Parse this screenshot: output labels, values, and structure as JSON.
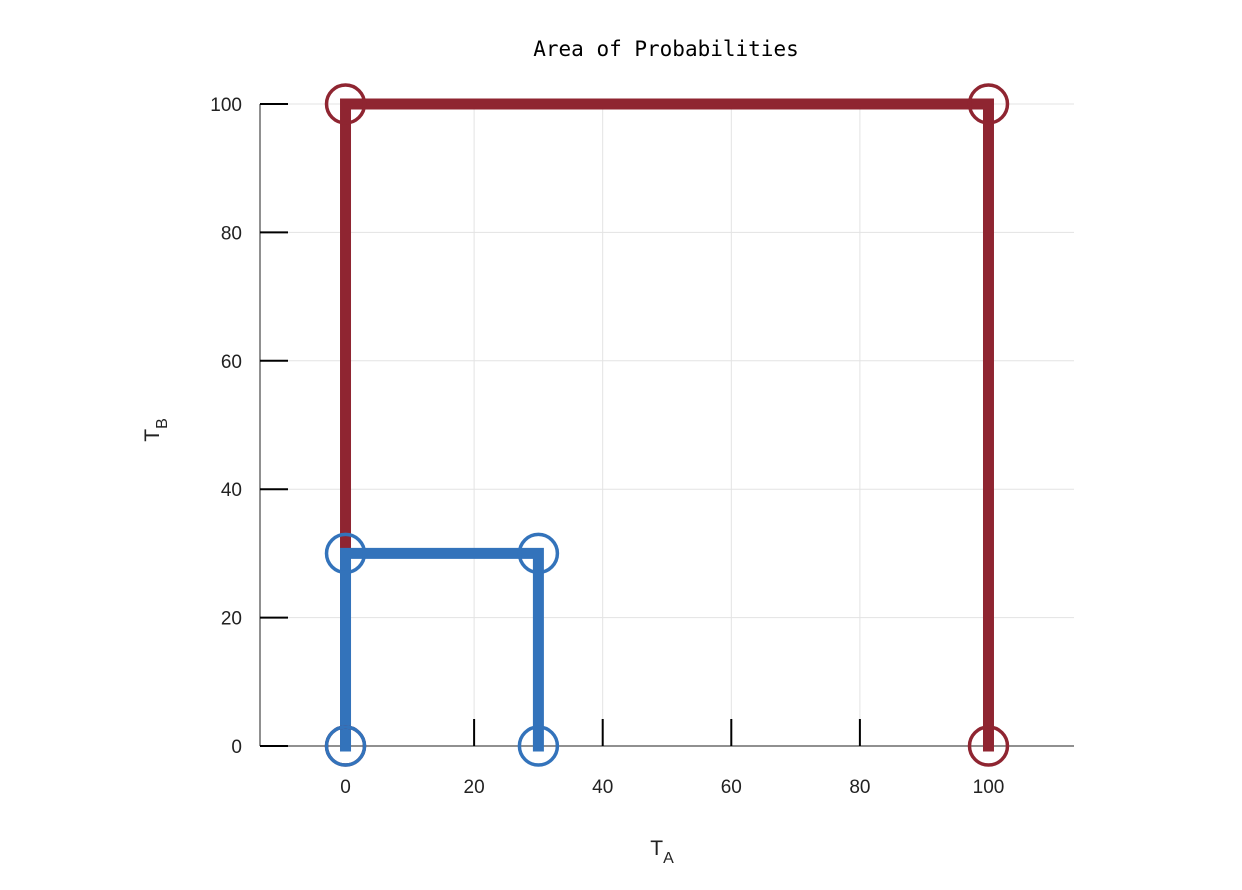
{
  "chart_data": {
    "type": "line",
    "title": "Area of Probabilities",
    "xlabel": {
      "base": "T",
      "sub": "A"
    },
    "ylabel": {
      "base": "T",
      "sub": "B"
    },
    "xlim": [
      -13.3,
      113.3
    ],
    "ylim": [
      0,
      100
    ],
    "xticks": [
      0,
      20,
      40,
      60,
      80,
      100
    ],
    "yticks": [
      0,
      20,
      40,
      60,
      80,
      100
    ],
    "grid": true,
    "legend": "none",
    "series": [
      {
        "color": "#8f2531",
        "marker": "open-circle",
        "x": [
          0,
          0,
          100,
          100
        ],
        "y": [
          0,
          100,
          100,
          0
        ]
      },
      {
        "color": "#3373bb",
        "marker": "open-circle",
        "x": [
          0,
          0,
          30,
          30
        ],
        "y": [
          0,
          30,
          30,
          0
        ]
      }
    ]
  }
}
